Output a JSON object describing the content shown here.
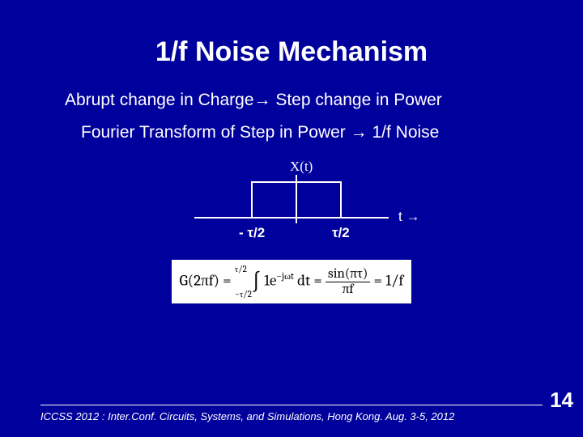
{
  "background_color": "#00009c",
  "text_color": "#ffffff",
  "title": "1/f Noise Mechanism",
  "title_fontsize": 34,
  "line1_pre": "Abrupt change in Charge",
  "line1_post": " Step  change in Power",
  "line2_pre": "Fourier Transform of Step in Power ",
  "line2_post": " 1/f Noise",
  "arrow": "→",
  "body_fontsize": 21,
  "diagram": {
    "function_label": "X(t)",
    "t_axis_label": "t →",
    "left_tick": "- τ/2",
    "right_tick": "τ/2",
    "line_color": "#ffffff"
  },
  "equation": {
    "lhs": "G(2πf) = ",
    "int_upper": "τ/2",
    "int_lower": "−τ/2",
    "integrand": " 1e",
    "exponent": "−jωt",
    "dt": " dt = ",
    "frac_num": "sin(πτ)",
    "frac_den": "πf",
    "rhs": " = 1/f",
    "bg": "#ffffff",
    "fg": "#000000"
  },
  "footer": "ICCSS 2012 : Inter.Conf. Circuits, Systems, and Simulations, Hong Kong. Aug. 3-5, 2012",
  "page_number": "14"
}
